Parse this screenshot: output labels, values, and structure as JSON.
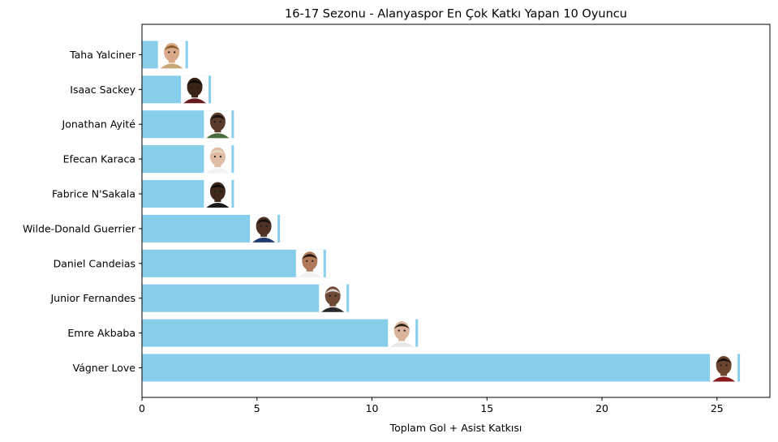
{
  "chart_data": {
    "type": "bar",
    "orientation": "horizontal",
    "title": "16-17 Sezonu - Alanyaspor En Çok Katkı Yapan 10 Oyuncu",
    "xlabel": "Toplam Gol + Asist Katkısı",
    "ylabel": "",
    "xlim": [
      0,
      27.3
    ],
    "xticks": [
      0,
      5,
      10,
      15,
      20,
      25
    ],
    "grid": false,
    "bar_color": "#87CEEB",
    "categories": [
      "Vágner Love",
      "Emre Akbaba",
      "Junior Fernandes",
      "Daniel Candeias",
      "Wilde-Donald Guerrier",
      "Fabrice N'Sakala",
      "Efecan Karaca",
      "Jonathan Ayité",
      "Isaac Sackey",
      "Taha Yalciner"
    ],
    "values": [
      26,
      12,
      9,
      8,
      6,
      4,
      4,
      4,
      3,
      2
    ],
    "player_photos": [
      {
        "player": "Vágner Love",
        "skin": "#6b4530",
        "hair": "#1a1210",
        "shirt": "#8a1a1a"
      },
      {
        "player": "Emre Akbaba",
        "skin": "#d9b49a",
        "hair": "#2a2018",
        "shirt": "#e8e8e8"
      },
      {
        "player": "Junior Fernandes",
        "skin": "#6e4a36",
        "hair": "#d9d4cc",
        "shirt": "#2a2a2a"
      },
      {
        "player": "Daniel Candeias",
        "skin": "#b07a5a",
        "hair": "#1f1612",
        "shirt": "#f0f0f0"
      },
      {
        "player": "Wilde-Donald Guerrier",
        "skin": "#4e3224",
        "hair": "#151010",
        "shirt": "#1e3a6e"
      },
      {
        "player": "Fabrice N'Sakala",
        "skin": "#3e281c",
        "hair": "#100c0a",
        "shirt": "#1a1a1a"
      },
      {
        "player": "Efecan Karaca",
        "skin": "#e0bca4",
        "hair": "#e6d8c8",
        "shirt": "#f2f2f2"
      },
      {
        "player": "Jonathan Ayité",
        "skin": "#5a3a2a",
        "hair": "#18120e",
        "shirt": "#4a6a3a"
      },
      {
        "player": "Isaac Sackey",
        "skin": "#3a2418",
        "hair": "#0e0a08",
        "shirt": "#6a1a1a"
      },
      {
        "player": "Taha Yalciner",
        "skin": "#d8a888",
        "hair": "#8a5a2a",
        "shirt": "#c8a878"
      }
    ]
  }
}
